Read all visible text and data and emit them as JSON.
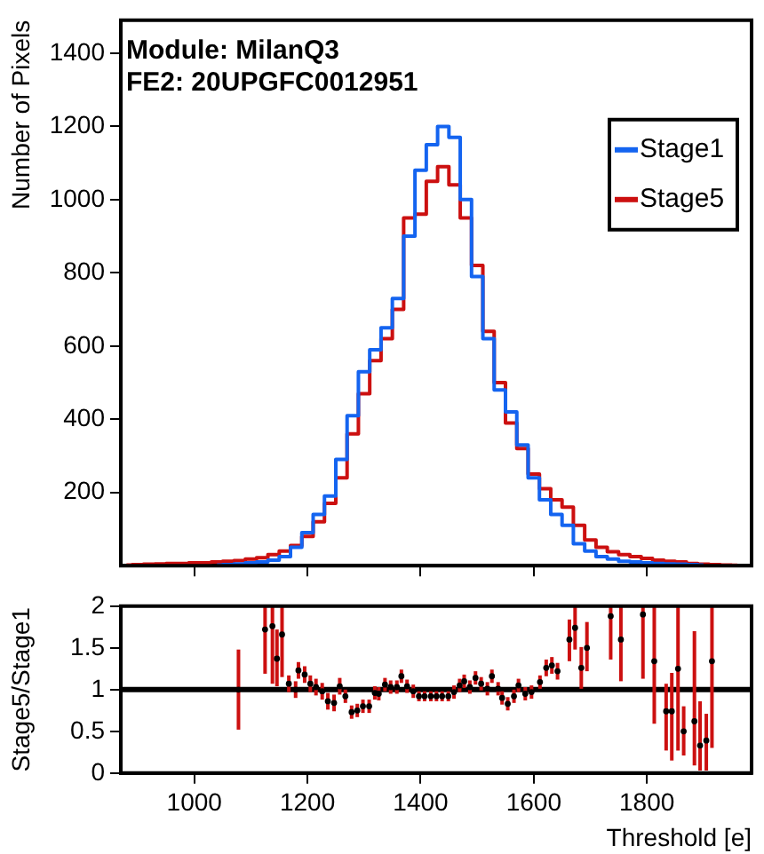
{
  "chart_data": [
    {
      "type": "step",
      "ylabel": "Number of Pixels",
      "annotations": [
        "Module: MilanQ3",
        "FE2: 20UPGFC0012951"
      ],
      "legend": "top right",
      "grid": false,
      "tick_labels": "y",
      "xlim": [
        870,
        1985
      ],
      "xticks": [
        1000,
        1200,
        1400,
        1600,
        1800
      ],
      "ylim": [
        0,
        1490
      ],
      "yticks": [
        200,
        400,
        600,
        800,
        1000,
        1200,
        1400
      ],
      "x": [
        880,
        900,
        920,
        940,
        960,
        980,
        1000,
        1020,
        1040,
        1060,
        1080,
        1100,
        1120,
        1140,
        1160,
        1180,
        1200,
        1220,
        1240,
        1260,
        1280,
        1300,
        1320,
        1340,
        1360,
        1380,
        1400,
        1420,
        1440,
        1460,
        1480,
        1500,
        1520,
        1540,
        1560,
        1580,
        1600,
        1620,
        1640,
        1660,
        1680,
        1700,
        1720,
        1740,
        1760,
        1780,
        1800,
        1820,
        1840,
        1860,
        1880,
        1900,
        1920,
        1940,
        1960
      ],
      "series": [
        {
          "name": "Stage1",
          "color": "#1464f0",
          "values": [
            null,
            null,
            null,
            null,
            null,
            null,
            null,
            null,
            2,
            3,
            5,
            8,
            10,
            15,
            25,
            50,
            90,
            140,
            190,
            290,
            410,
            530,
            590,
            650,
            730,
            900,
            1080,
            1150,
            1200,
            1170,
            1000,
            790,
            620,
            480,
            420,
            330,
            240,
            180,
            140,
            110,
            60,
            40,
            25,
            18,
            12,
            10,
            8,
            6,
            5,
            4,
            3,
            2,
            null,
            null,
            null
          ]
        },
        {
          "name": "Stage5",
          "color": "#cc1010",
          "values": [
            2,
            3,
            4,
            5,
            6,
            6,
            8,
            8,
            10,
            12,
            14,
            18,
            22,
            30,
            40,
            55,
            80,
            120,
            170,
            240,
            360,
            470,
            560,
            620,
            700,
            950,
            960,
            1050,
            1090,
            1040,
            950,
            820,
            640,
            500,
            390,
            320,
            250,
            210,
            180,
            160,
            110,
            70,
            50,
            38,
            30,
            25,
            20,
            15,
            12,
            10,
            6,
            4,
            3,
            2,
            1
          ]
        }
      ]
    },
    {
      "type": "scatter",
      "xlabel": "Threshold [e]",
      "ylabel": "Stage5/Stage1",
      "grid": false,
      "marker": "circle",
      "xlim": [
        870,
        1985
      ],
      "xticks": [
        1000,
        1200,
        1400,
        1600,
        1800
      ],
      "ylim": [
        0,
        2
      ],
      "yticks": [
        0,
        0.5,
        1,
        1.5,
        2
      ],
      "ref_lines": [
        {
          "axis": "y",
          "value": 1,
          "color": "#000000"
        }
      ],
      "x": [
        1078,
        1125,
        1138,
        1146,
        1155,
        1167,
        1179,
        1184,
        1195,
        1205,
        1215,
        1226,
        1236,
        1247,
        1257,
        1267,
        1278,
        1288,
        1298,
        1309,
        1319,
        1326,
        1337,
        1347,
        1358,
        1366,
        1376,
        1387,
        1397,
        1407,
        1418,
        1428,
        1438,
        1449,
        1459,
        1469,
        1477,
        1487,
        1497,
        1507,
        1518,
        1526,
        1537,
        1544,
        1554,
        1565,
        1573,
        1585,
        1596,
        1611,
        1622,
        1632,
        1642,
        1663,
        1673,
        1684,
        1694,
        1736,
        1754,
        1793,
        1813,
        1834,
        1844,
        1855,
        1865,
        1884,
        1894,
        1905,
        1915
      ],
      "series": [
        {
          "color": "#000000",
          "values": [
            1.0,
            1.72,
            1.76,
            1.37,
            1.66,
            1.07,
            1.0,
            1.23,
            1.18,
            1.07,
            1.03,
            0.98,
            0.86,
            0.84,
            1.04,
            0.92,
            0.73,
            0.75,
            0.8,
            0.8,
            0.96,
            0.95,
            1.06,
            1.03,
            1.03,
            1.16,
            1.04,
            0.98,
            0.92,
            0.92,
            0.92,
            0.92,
            0.92,
            0.92,
            0.97,
            1.05,
            1.1,
            1.03,
            1.14,
            1.07,
            1.01,
            1.16,
            1.01,
            0.9,
            0.83,
            0.92,
            1.05,
            0.95,
            0.97,
            1.09,
            1.26,
            1.29,
            1.22,
            1.6,
            1.74,
            1.26,
            1.5,
            1.88,
            1.6,
            1.9,
            1.34,
            0.74,
            0.74,
            1.25,
            0.5,
            0.62,
            0.33,
            0.39,
            1.34
          ],
          "errors": [
            [
              0.52,
              1.48
            ],
            [
              1.19,
              2
            ],
            [
              1.07,
              2
            ],
            [
              1.04,
              1.72
            ],
            [
              1.15,
              2
            ],
            0.1,
            0.1,
            0.1,
            0.1,
            0.1,
            0.1,
            0.1,
            0.1,
            0.1,
            0.1,
            0.08,
            0.08,
            0.08,
            0.08,
            0.08,
            0.08,
            0.08,
            0.08,
            0.08,
            0.08,
            0.08,
            0.08,
            0.08,
            0.06,
            0.06,
            0.06,
            0.06,
            0.06,
            0.06,
            0.08,
            0.08,
            0.08,
            0.08,
            0.08,
            0.08,
            0.08,
            0.08,
            0.08,
            0.08,
            0.08,
            0.08,
            0.08,
            0.08,
            0.08,
            0.08,
            0.1,
            0.1,
            0.1,
            [
              1.34,
              1.84
            ],
            [
              1.48,
              2
            ],
            [
              1.01,
              1.51
            ],
            [
              1.22,
              1.81
            ],
            [
              1.36,
              2
            ],
            [
              1.1,
              2
            ],
            [
              1.13,
              2
            ],
            [
              0.59,
              2
            ],
            [
              0.27,
              1.07
            ],
            [
              0.15,
              1.2
            ],
            [
              0.27,
              2
            ],
            [
              0.21,
              0.8
            ],
            [
              0.09,
              1.7
            ],
            [
              0.03,
              0.86
            ],
            [
              0.03,
              0.71
            ],
            [
              0.3,
              2
            ]
          ]
        }
      ]
    }
  ]
}
